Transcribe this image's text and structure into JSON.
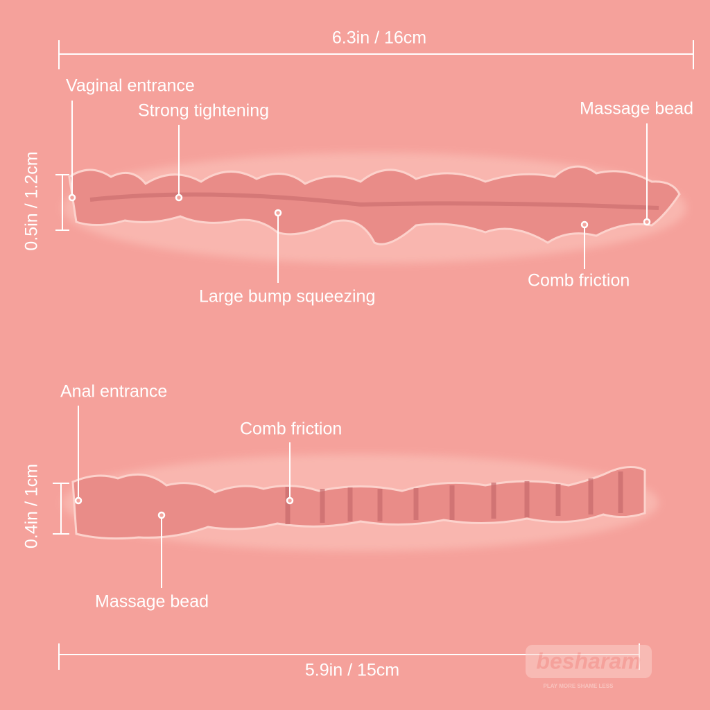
{
  "top_channel": {
    "length": "6.3in / 16cm",
    "height": "0.5in / 1.2cm",
    "labels": [
      "Vaginal entrance",
      "Strong tightening",
      "Massage bead",
      "Large bump squeezing",
      "Comb friction"
    ]
  },
  "bottom_channel": {
    "length": "5.9in / 15cm",
    "height": "0.4in / 1cm",
    "labels": [
      "Anal entrance",
      "Comb friction",
      "Massage bead"
    ]
  },
  "watermark": {
    "brand": "besharam",
    "tagline": "PLAY MORE SHAME LESS"
  }
}
